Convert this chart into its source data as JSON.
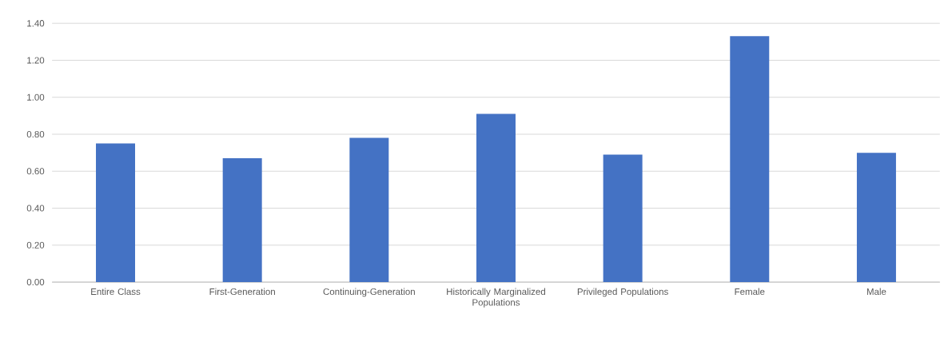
{
  "chart_data": {
    "type": "bar",
    "categories": [
      "Entire Class",
      "First-Generation",
      "Continuing-Generation",
      "Historically Marginalized Populations",
      "Privileged Populations",
      "Female",
      "Male"
    ],
    "values": [
      0.75,
      0.67,
      0.78,
      0.91,
      0.69,
      1.33,
      0.7
    ],
    "color": "#4472c4",
    "ylim": [
      0,
      1.4
    ],
    "yticks": [
      {
        "value": 0,
        "label": "0.00"
      },
      {
        "value": 0.2,
        "label": "0.20"
      },
      {
        "value": 0.4,
        "label": "0.40"
      },
      {
        "value": 0.6,
        "label": "0.60"
      },
      {
        "value": 0.8,
        "label": "0.80"
      },
      {
        "value": 1.0,
        "label": "1.00"
      },
      {
        "value": 1.2,
        "label": "1.20"
      },
      {
        "value": 1.4,
        "label": "1.40"
      }
    ],
    "grid": "y"
  }
}
